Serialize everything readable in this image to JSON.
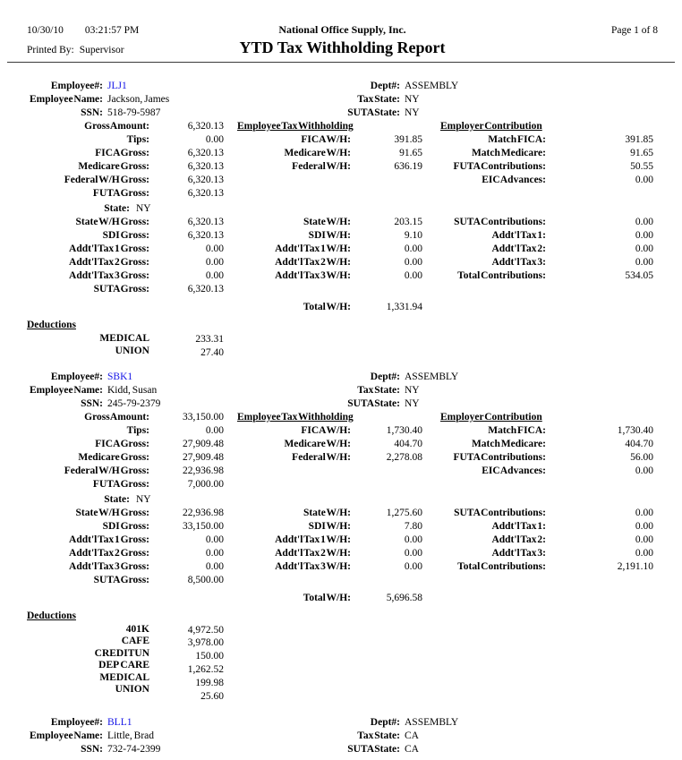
{
  "page": {
    "date": "10/30/10",
    "time": "03:21:57 PM",
    "company": "National Office Supply, Inc.",
    "page_indicator": "Page 1 of 8",
    "printed_by_label": "Printed By:",
    "printed_by": "Supervisor",
    "report_title": "YTD Tax Withholding Report"
  },
  "colors": {
    "employee_number": "#1414e6",
    "text": "#000000"
  },
  "labels": {
    "employee_no": "Employee#:",
    "employee_name": "Employee Name:",
    "ssn": "SSN:",
    "dept": "Dept#:",
    "tax_state": "Tax State:",
    "suta_state": "SUTA State:",
    "gross_amount": "Gross Amount:",
    "tips": "Tips:",
    "fica_gross": "FICA Gross:",
    "medicare_gross": "Medicare Gross:",
    "federal_wh_gross": "Federal W/H Gross:",
    "futa_gross": "FUTA Gross:",
    "state": "State:",
    "state_wh_gross": "State W/H Gross:",
    "sdi_gross": "SDI Gross:",
    "addtl_tax_1_gross": "Addt'l Tax 1 Gross:",
    "addtl_tax_2_gross": "Addt'l Tax 2 Gross:",
    "addtl_tax_3_gross": "Addt'l Tax 3 Gross:",
    "suta_gross": "SUTA Gross:",
    "employee_tax_withholding": "Employee Tax Withholding",
    "fica_wh": "FICA W/H:",
    "medicare_wh": "Medicare W/H:",
    "federal_wh": "Federal W/H:",
    "state_wh": "State W/H:",
    "sdi_wh": "SDI W/H:",
    "addtl_tax_1_wh": "Addt'l Tax 1 W/H:",
    "addtl_tax_2_wh": "Addt'l Tax 2 W/H:",
    "addtl_tax_3_wh": "Addt'l Tax 3 W/H:",
    "total_wh": "Total W/H:",
    "employer_contribution": "Employer Contribution",
    "match_fica": "Match FICA:",
    "match_medicare": "Match Medicare:",
    "futa_contributions": "FUTA Contributions:",
    "eic_advances": "EIC Advances:",
    "suta_contributions": "SUTA Contributions:",
    "addtl_tax_1": "Addt'l Tax 1:",
    "addtl_tax_2": "Addt'l Tax 2:",
    "addtl_tax_3": "Addt'l Tax 3:",
    "total_contributions": "Total Contributions:",
    "deductions": "Deductions"
  },
  "employees": [
    {
      "number": "JLJ1",
      "name": "Jackson, James",
      "ssn": "518-79-5987",
      "dept": "ASSEMBLY",
      "tax_state": "NY",
      "suta_state": "NY",
      "gross_amount": "6,320.13",
      "tips": "0.00",
      "fica_gross": "6,320.13",
      "medicare_gross": "6,320.13",
      "federal_wh_gross": "6,320.13",
      "futa_gross": "6,320.13",
      "fica_wh": "391.85",
      "medicare_wh": "91.65",
      "federal_wh": "636.19",
      "match_fica": "391.85",
      "match_medicare": "91.65",
      "futa_contributions": "50.55",
      "eic_advances": "0.00",
      "state": "NY",
      "state_wh_gross": "6,320.13",
      "sdi_gross": "6,320.13",
      "addtl_tax_1_gross": "0.00",
      "addtl_tax_2_gross": "0.00",
      "addtl_tax_3_gross": "0.00",
      "suta_gross": "6,320.13",
      "state_wh": "203.15",
      "sdi_wh": "9.10",
      "addtl_tax_1_wh": "0.00",
      "addtl_tax_2_wh": "0.00",
      "addtl_tax_3_wh": "0.00",
      "suta_contributions": "0.00",
      "addtl_tax_1": "0.00",
      "addtl_tax_2": "0.00",
      "addtl_tax_3": "0.00",
      "total_contributions": "534.05",
      "total_wh": "1,331.94",
      "deductions": [
        {
          "name": "MEDICAL",
          "amount": "233.31"
        },
        {
          "name": "UNION",
          "amount": "27.40"
        }
      ]
    },
    {
      "number": "SBK1",
      "name": "Kidd, Susan",
      "ssn": "245-79-2379",
      "dept": "ASSEMBLY",
      "tax_state": "NY",
      "suta_state": "NY",
      "gross_amount": "33,150.00",
      "tips": "0.00",
      "fica_gross": "27,909.48",
      "medicare_gross": "27,909.48",
      "federal_wh_gross": "22,936.98",
      "futa_gross": "7,000.00",
      "fica_wh": "1,730.40",
      "medicare_wh": "404.70",
      "federal_wh": "2,278.08",
      "match_fica": "1,730.40",
      "match_medicare": "404.70",
      "futa_contributions": "56.00",
      "eic_advances": "0.00",
      "state": "NY",
      "state_wh_gross": "22,936.98",
      "sdi_gross": "33,150.00",
      "addtl_tax_1_gross": "0.00",
      "addtl_tax_2_gross": "0.00",
      "addtl_tax_3_gross": "0.00",
      "suta_gross": "8,500.00",
      "state_wh": "1,275.60",
      "sdi_wh": "7.80",
      "addtl_tax_1_wh": "0.00",
      "addtl_tax_2_wh": "0.00",
      "addtl_tax_3_wh": "0.00",
      "suta_contributions": "0.00",
      "addtl_tax_1": "0.00",
      "addtl_tax_2": "0.00",
      "addtl_tax_3": "0.00",
      "total_contributions": "2,191.10",
      "total_wh": "5,696.58",
      "deductions": [
        {
          "name": "401K",
          "amount": "4,972.50"
        },
        {
          "name": "CAFE",
          "amount": "3,978.00"
        },
        {
          "name": "CREDITUN",
          "amount": "150.00"
        },
        {
          "name": "DEP CARE",
          "amount": "1,262.52"
        },
        {
          "name": "MEDICAL",
          "amount": "199.98"
        },
        {
          "name": "UNION",
          "amount": "25.60"
        }
      ]
    },
    {
      "number": "BLL1",
      "name": "Little, Brad",
      "ssn": "732-74-2399",
      "dept": "ASSEMBLY",
      "tax_state": "CA",
      "suta_state": "CA"
    }
  ]
}
